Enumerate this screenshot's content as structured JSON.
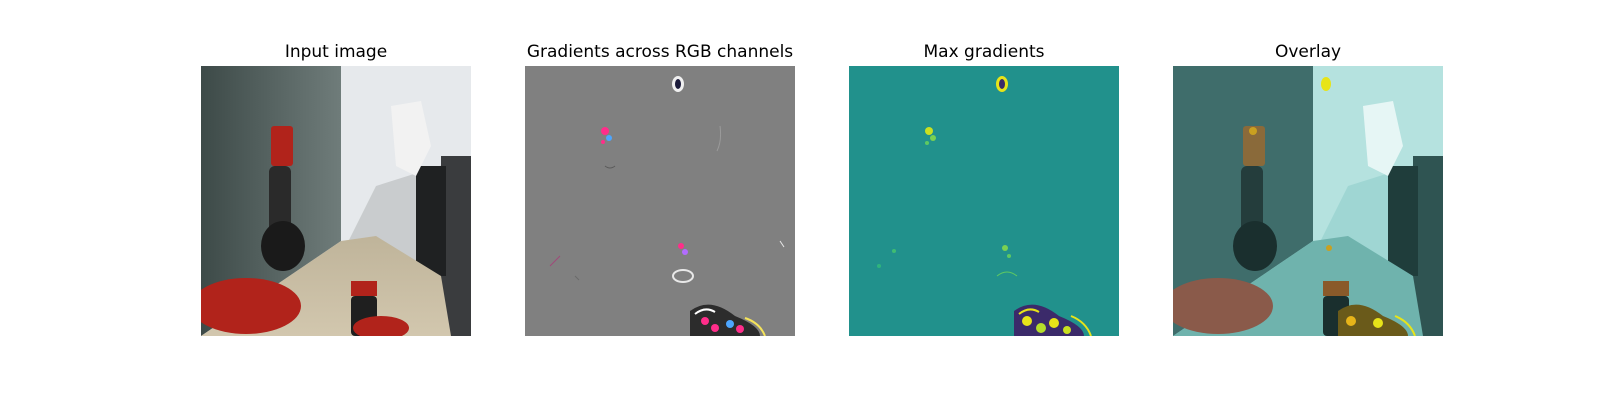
{
  "figure": {
    "panels": [
      {
        "title": "Input image"
      },
      {
        "title": "Gradients across RGB channels"
      },
      {
        "title": "Max gradients"
      },
      {
        "title": "Overlay"
      }
    ],
    "colors": {
      "gradient_gray": "#808080",
      "max_gradient_teal": "#21918c",
      "highlight_yellow": "#e7e419",
      "highlight_magenta": "#ff2d8a",
      "robot_red": "#b1231b",
      "overlay_tint": "#7fd3cf"
    }
  }
}
